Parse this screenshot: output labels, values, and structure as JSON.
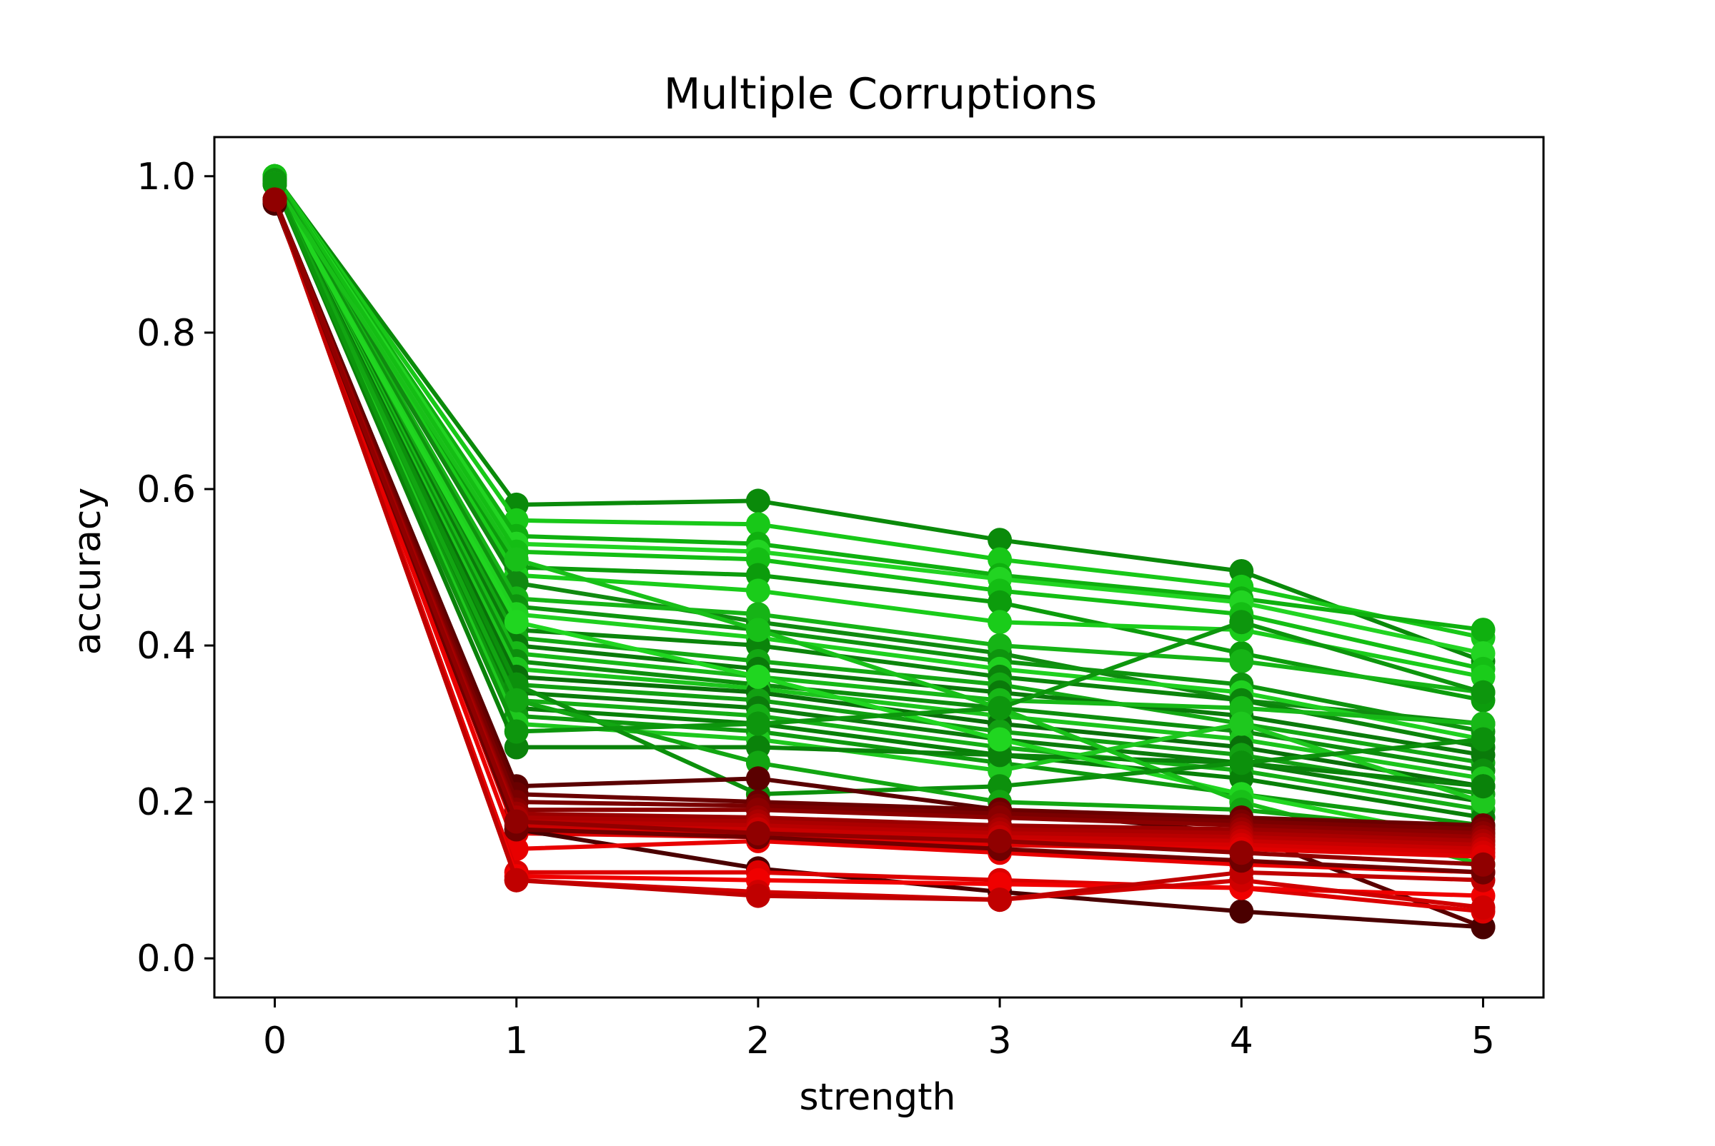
{
  "chart_data": {
    "type": "line",
    "title": "Multiple Corruptions",
    "xlabel": "strength",
    "ylabel": "accuracy",
    "xlim": [
      -0.25,
      5.25
    ],
    "ylim": [
      -0.05,
      1.05
    ],
    "x": [
      0,
      1,
      2,
      3,
      4,
      5
    ],
    "x_ticks": [
      0,
      1,
      2,
      3,
      4,
      5
    ],
    "x_tick_labels": [
      "0",
      "1",
      "2",
      "3",
      "4",
      "5"
    ],
    "y_ticks": [
      0.0,
      0.2,
      0.4,
      0.6,
      0.8,
      1.0
    ],
    "y_tick_labels": [
      "0.0",
      "0.2",
      "0.4",
      "0.6",
      "0.8",
      "1.0"
    ],
    "grid": false,
    "legend": false,
    "series": [
      {
        "color": "#0a8a0a",
        "values": [
          1.0,
          0.58,
          0.585,
          0.535,
          0.495,
          0.38
        ]
      },
      {
        "color": "#18c818",
        "values": [
          1.0,
          0.56,
          0.555,
          0.51,
          0.475,
          0.41
        ]
      },
      {
        "color": "#0fb00f",
        "values": [
          1.0,
          0.54,
          0.53,
          0.49,
          0.46,
          0.42
        ]
      },
      {
        "color": "#22d422",
        "values": [
          1.0,
          0.53,
          0.52,
          0.485,
          0.455,
          0.39
        ]
      },
      {
        "color": "#14be14",
        "values": [
          1.0,
          0.52,
          0.51,
          0.47,
          0.44,
          0.37
        ]
      },
      {
        "color": "#0c9c0c",
        "values": [
          0.995,
          0.5,
          0.49,
          0.455,
          0.39,
          0.33
        ]
      },
      {
        "color": "#1acc1a",
        "values": [
          0.995,
          0.49,
          0.47,
          0.43,
          0.42,
          0.36
        ]
      },
      {
        "color": "#108a10",
        "values": [
          0.995,
          0.48,
          0.43,
          0.39,
          0.33,
          0.3
        ]
      },
      {
        "color": "#16b416",
        "values": [
          0.995,
          0.46,
          0.44,
          0.4,
          0.38,
          0.34
        ]
      },
      {
        "color": "#0e940e",
        "values": [
          0.995,
          0.45,
          0.42,
          0.38,
          0.35,
          0.29
        ]
      },
      {
        "color": "#1fd01f",
        "values": [
          0.99,
          0.44,
          0.41,
          0.37,
          0.34,
          0.28
        ]
      },
      {
        "color": "#0b840b",
        "values": [
          0.99,
          0.42,
          0.4,
          0.36,
          0.33,
          0.27
        ]
      },
      {
        "color": "#13a813",
        "values": [
          0.99,
          0.41,
          0.38,
          0.35,
          0.3,
          0.25
        ]
      },
      {
        "color": "#0a7a0a",
        "values": [
          0.99,
          0.4,
          0.37,
          0.34,
          0.31,
          0.26
        ]
      },
      {
        "color": "#17b817",
        "values": [
          0.99,
          0.39,
          0.36,
          0.33,
          0.32,
          0.3
        ]
      },
      {
        "color": "#0d8e0d",
        "values": [
          0.99,
          0.38,
          0.35,
          0.32,
          0.29,
          0.24
        ]
      },
      {
        "color": "#1cc41c",
        "values": [
          0.99,
          0.37,
          0.345,
          0.31,
          0.28,
          0.23
        ]
      },
      {
        "color": "#097009",
        "values": [
          0.99,
          0.36,
          0.34,
          0.3,
          0.27,
          0.22
        ]
      },
      {
        "color": "#12a012",
        "values": [
          0.99,
          0.35,
          0.33,
          0.29,
          0.26,
          0.21
        ]
      },
      {
        "color": "#0b7c0b",
        "values": [
          0.99,
          0.34,
          0.32,
          0.28,
          0.25,
          0.2
        ]
      },
      {
        "color": "#15ae15",
        "values": [
          0.99,
          0.33,
          0.31,
          0.27,
          0.24,
          0.19
        ]
      },
      {
        "color": "#088008",
        "values": [
          0.99,
          0.32,
          0.3,
          0.26,
          0.23,
          0.18
        ]
      },
      {
        "color": "#0f9a0f",
        "values": [
          0.99,
          0.31,
          0.29,
          0.25,
          0.21,
          0.17
        ]
      },
      {
        "color": "#1ec81e",
        "values": [
          0.99,
          0.3,
          0.28,
          0.24,
          0.3,
          0.2
        ]
      },
      {
        "color": "#0a820a",
        "values": [
          0.99,
          0.27,
          0.27,
          0.26,
          0.25,
          0.22
        ]
      },
      {
        "color": "#20d620",
        "values": [
          0.99,
          0.43,
          0.36,
          0.28,
          0.21,
          0.15
        ]
      },
      {
        "color": "#18c018",
        "values": [
          0.99,
          0.51,
          0.42,
          0.32,
          0.2,
          0.12
        ]
      },
      {
        "color": "#0c900c",
        "values": [
          0.99,
          0.35,
          0.21,
          0.22,
          0.25,
          0.28
        ]
      },
      {
        "color": "#12a612",
        "values": [
          0.99,
          0.33,
          0.25,
          0.2,
          0.19,
          0.16
        ]
      },
      {
        "color": "#0d960d",
        "values": [
          0.99,
          0.29,
          0.3,
          0.32,
          0.43,
          0.34
        ]
      },
      {
        "color": "#5a0000",
        "values": [
          0.97,
          0.22,
          0.23,
          0.19,
          0.16,
          0.04
        ]
      },
      {
        "color": "#6a0000",
        "values": [
          0.97,
          0.21,
          0.2,
          0.19,
          0.18,
          0.17
        ]
      },
      {
        "color": "#7a0000",
        "values": [
          0.97,
          0.2,
          0.195,
          0.185,
          0.175,
          0.165
        ]
      },
      {
        "color": "#8a0000",
        "values": [
          0.97,
          0.19,
          0.19,
          0.18,
          0.17,
          0.16
        ]
      },
      {
        "color": "#9a0000",
        "values": [
          0.97,
          0.185,
          0.18,
          0.17,
          0.165,
          0.155
        ]
      },
      {
        "color": "#aa0000",
        "values": [
          0.97,
          0.18,
          0.175,
          0.165,
          0.16,
          0.15
        ]
      },
      {
        "color": "#b80000",
        "values": [
          0.97,
          0.175,
          0.17,
          0.16,
          0.155,
          0.145
        ]
      },
      {
        "color": "#c80000",
        "values": [
          0.97,
          0.17,
          0.165,
          0.155,
          0.15,
          0.14
        ]
      },
      {
        "color": "#d60000",
        "values": [
          0.97,
          0.165,
          0.16,
          0.15,
          0.145,
          0.135
        ]
      },
      {
        "color": "#e00000",
        "values": [
          0.97,
          0.16,
          0.155,
          0.145,
          0.14,
          0.13
        ]
      },
      {
        "color": "#4a0000",
        "values": [
          0.965,
          0.165,
          0.115,
          0.085,
          0.06,
          0.04
        ]
      },
      {
        "color": "#e80000",
        "values": [
          0.97,
          0.14,
          0.15,
          0.135,
          0.12,
          0.11
        ]
      },
      {
        "color": "#dc0000",
        "values": [
          0.97,
          0.11,
          0.11,
          0.1,
          0.09,
          0.06
        ]
      },
      {
        "color": "#f00000",
        "values": [
          0.97,
          0.105,
          0.1,
          0.095,
          0.09,
          0.08
        ]
      },
      {
        "color": "#d00000",
        "values": [
          0.97,
          0.1,
          0.085,
          0.075,
          0.1,
          0.065
        ]
      },
      {
        "color": "#c00000",
        "values": [
          0.97,
          0.1,
          0.08,
          0.075,
          0.11,
          0.1
        ]
      },
      {
        "color": "#700000",
        "values": [
          0.97,
          0.165,
          0.155,
          0.14,
          0.125,
          0.11
        ]
      },
      {
        "color": "#900000",
        "values": [
          0.97,
          0.175,
          0.16,
          0.15,
          0.135,
          0.12
        ]
      }
    ]
  }
}
